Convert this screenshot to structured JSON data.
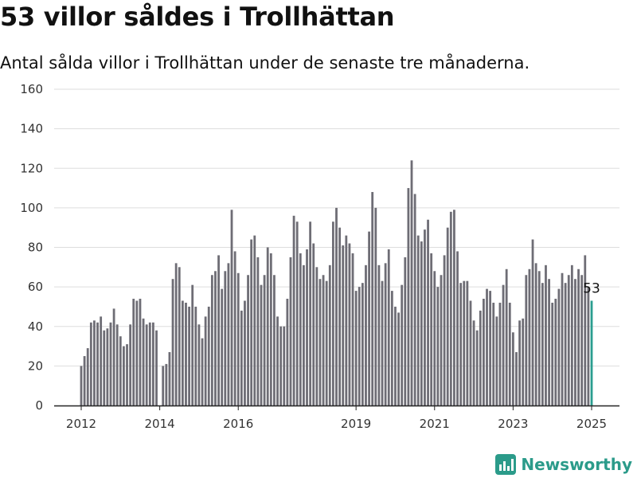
{
  "title": "53 villor såldes i Trollhättan",
  "subtitle": "Antal sålda villor i Trollhättan under de senaste tre månaderna.",
  "brand": {
    "name": "Newsworthy",
    "icon": "newsworthy-logo-icon"
  },
  "colors": {
    "bar": "#6e6d75",
    "highlight": "#2a9d8f",
    "grid": "#dddddd",
    "axis": "#222222",
    "brand": "#2b9b8a"
  },
  "chart_data": {
    "type": "bar",
    "title": "53 villor såldes i Trollhättan",
    "subtitle": "Antal sålda villor i Trollhättan under de senaste tre månaderna.",
    "xlabel": "",
    "ylabel": "",
    "ylim": [
      0,
      160
    ],
    "yticks": [
      0,
      20,
      40,
      60,
      80,
      100,
      120,
      140,
      160
    ],
    "xticks": [
      "2012",
      "2014",
      "2016",
      "2019",
      "2021",
      "2023",
      "2025"
    ],
    "grid": true,
    "legend": "none",
    "start_month": "2012-01",
    "highlight": {
      "month": "2025-01",
      "value": 53,
      "label": "53"
    },
    "values": [
      20,
      25,
      29,
      42,
      43,
      42,
      45,
      38,
      39,
      42,
      49,
      41,
      35,
      30,
      31,
      41,
      54,
      53,
      54,
      44,
      41,
      42,
      42,
      38,
      0,
      20,
      21,
      27,
      64,
      72,
      70,
      53,
      52,
      50,
      61,
      50,
      41,
      34,
      45,
      50,
      66,
      68,
      76,
      59,
      68,
      72,
      99,
      78,
      67,
      48,
      53,
      66,
      84,
      86,
      75,
      61,
      66,
      80,
      77,
      66,
      45,
      40,
      40,
      54,
      75,
      96,
      93,
      77,
      71,
      79,
      93,
      82,
      70,
      64,
      66,
      63,
      71,
      93,
      100,
      90,
      81,
      86,
      82,
      77,
      58,
      60,
      62,
      71,
      88,
      108,
      100,
      71,
      63,
      72,
      79,
      58,
      50,
      47,
      61,
      75,
      110,
      124,
      107,
      86,
      83,
      89,
      94,
      77,
      68,
      60,
      66,
      76,
      90,
      98,
      99,
      78,
      62,
      63,
      63,
      53,
      43,
      38,
      48,
      54,
      59,
      58,
      52,
      45,
      52,
      61,
      69,
      52,
      37,
      27,
      43,
      44,
      66,
      69,
      84,
      72,
      68,
      62,
      71,
      64,
      52,
      54,
      59,
      67,
      62,
      66,
      71,
      64,
      69,
      66,
      76,
      60,
      53
    ]
  }
}
